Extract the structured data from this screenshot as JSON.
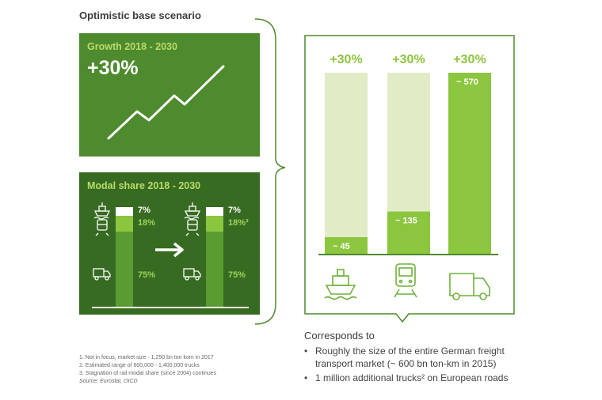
{
  "heading": "Optimistic base scenario",
  "growth_panel": {
    "title": "Growth 2018 - 2030",
    "value": "+30%"
  },
  "modal_panel": {
    "title": "Modal share 2018 - 2030",
    "left": {
      "ship": "7%",
      "rail": "18%",
      "truck": "75%"
    },
    "right": {
      "ship": "7%",
      "rail": "18%³",
      "truck": "75%"
    }
  },
  "colors": {
    "dark_green": "#376b21",
    "mid_green": "#4e8a2e",
    "accent_green": "#8cc63f",
    "light_green": "#e1ecc7"
  },
  "chart_data": {
    "type": "bar",
    "categories": [
      "ship",
      "rail",
      "truck"
    ],
    "growth_labels": [
      "+30%",
      "+30%",
      "+30%"
    ],
    "values": [
      45,
      135,
      570
    ],
    "value_labels": [
      "~ 45",
      "~ 135",
      "~ 570"
    ],
    "ylim": [
      0,
      570
    ]
  },
  "corresponds": {
    "title": "Corresponds to",
    "items": [
      "Roughly the size of the entire German freight transport market (~ 600 bn ton-km in 2015)",
      "1 million additional trucks² on European roads"
    ]
  },
  "footnotes": [
    "1.   Not in focus, market size - 1,250 bn ton kom in 2017",
    "2.   Estimated range of 600,000 - 1,400,000 trucks",
    "3.   Stagnation of rail modal share (since 2004) continues"
  ],
  "source": "Source: Eurostat, OICD"
}
